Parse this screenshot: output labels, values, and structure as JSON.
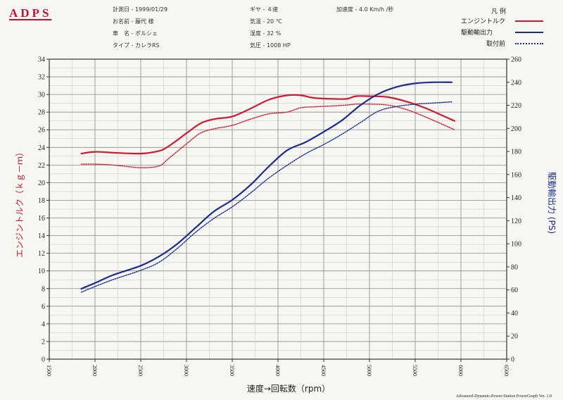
{
  "header": {
    "logo": "ADPS",
    "info": [
      "計測日 - 1999/01/29",
      "お名前 - 藤代 様",
      "車　名 - ポルシェ",
      "タイプ - カレラRS",
      "ギヤ - ４速",
      "気温 - 20 ℃",
      "湿度 - 32 %",
      "気圧 - 1008 HP",
      "加速度 - 4.0 Km/h /秒"
    ]
  },
  "legend": {
    "title": "凡 例",
    "items": [
      {
        "label": "エンジントルク",
        "color": "#d0192c",
        "style": "solid"
      },
      {
        "label": "駆動輸出力",
        "color": "#1c2c8c",
        "style": "solid"
      },
      {
        "label": "取付前",
        "color": "#1c2c8c",
        "style": "dotted"
      }
    ]
  },
  "footer": "Advanced-Dynamic-Power-Station PowerGraph Ver. 1.0",
  "chart_data": {
    "type": "line",
    "xlabel": "速度→回転数（rpm）",
    "ylabel_left": "エンジントルク（ｋｇ－ｍ）",
    "ylabel_right": "駆動輸出力 (PS)",
    "xlim": [
      1500,
      6500
    ],
    "ylim_left": [
      0,
      34
    ],
    "ylim_right": [
      0,
      260
    ],
    "x_ticks": [
      1500,
      2000,
      2500,
      3000,
      3500,
      4000,
      4500,
      5000,
      5500,
      6000,
      6500
    ],
    "y_left_ticks": [
      0,
      2,
      4,
      6,
      8,
      10,
      12,
      14,
      16,
      18,
      20,
      22,
      24,
      26,
      28,
      30,
      32,
      34
    ],
    "y_right_ticks": [
      0,
      20,
      40,
      60,
      80,
      100,
      120,
      140,
      160,
      180,
      200,
      220,
      240,
      260
    ],
    "grid": true,
    "series": [
      {
        "name": "エンジントルク",
        "axis": "left",
        "color": "#d0192c",
        "style": "solid",
        "width": 2.2,
        "x": [
          1850,
          2000,
          2200,
          2500,
          2700,
          2800,
          3000,
          3150,
          3300,
          3500,
          3700,
          3900,
          4100,
          4250,
          4400,
          4600,
          4750,
          4850,
          5000,
          5200,
          5400,
          5600,
          5800,
          5930
        ],
        "y": [
          23.3,
          23.5,
          23.4,
          23.3,
          23.6,
          24.1,
          25.6,
          26.7,
          27.2,
          27.5,
          28.4,
          29.4,
          29.9,
          29.9,
          29.6,
          29.5,
          29.5,
          29.8,
          29.8,
          29.7,
          29.2,
          28.5,
          27.6,
          27.0
        ]
      },
      {
        "name": "",
        "axis": "left",
        "color": "#d0192c",
        "style": "dotted",
        "width": 1.4,
        "x": [
          1850,
          2000,
          2200,
          2500,
          2700,
          2800,
          3000,
          3150,
          3300,
          3500,
          3700,
          3900,
          4100,
          4250,
          4400,
          4600,
          4750,
          4850,
          5000,
          5200,
          5400,
          5600,
          5800,
          5930
        ],
        "y": [
          22.1,
          22.1,
          22.0,
          21.7,
          21.9,
          22.7,
          24.4,
          25.6,
          26.1,
          26.5,
          27.2,
          27.8,
          28.0,
          28.5,
          28.6,
          28.7,
          28.8,
          28.9,
          28.9,
          28.8,
          28.3,
          27.5,
          26.6,
          26.0
        ]
      },
      {
        "name": "駆動輸出力",
        "axis": "right",
        "color": "#1c2c8c",
        "style": "solid",
        "width": 2.2,
        "x": [
          1850,
          2000,
          2200,
          2500,
          2700,
          2900,
          3100,
          3300,
          3500,
          3700,
          3900,
          4100,
          4300,
          4500,
          4700,
          4900,
          5100,
          5300,
          5500,
          5700,
          5900
        ],
        "y": [
          61,
          66,
          73,
          81,
          89,
          100,
          114,
          128,
          138,
          151,
          167,
          181,
          188,
          197,
          207,
          220,
          230,
          236,
          239,
          240,
          240
        ]
      },
      {
        "name": "取付前",
        "axis": "right",
        "color": "#1c2c8c",
        "style": "dotted",
        "width": 1.4,
        "x": [
          1850,
          2000,
          2200,
          2500,
          2700,
          2900,
          3100,
          3300,
          3500,
          3700,
          3900,
          4100,
          4300,
          4500,
          4700,
          4900,
          5100,
          5300,
          5500,
          5700,
          5900
        ],
        "y": [
          58,
          63,
          69,
          77,
          84,
          96,
          110,
          122,
          132,
          144,
          157,
          168,
          178,
          186,
          195,
          205,
          215,
          219,
          221,
          222,
          223
        ]
      }
    ]
  }
}
